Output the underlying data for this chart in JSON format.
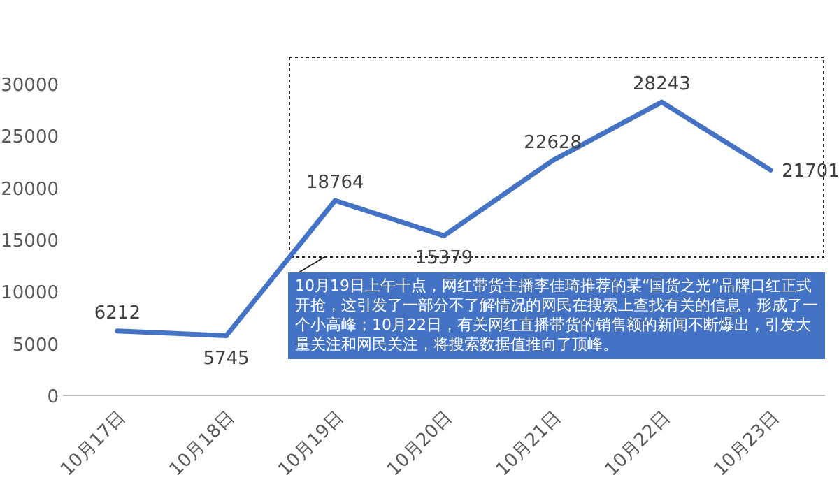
{
  "chart_data": {
    "type": "line",
    "categories": [
      "10月17日",
      "10月18日",
      "10月19日",
      "10月20日",
      "10月21日",
      "10月22日",
      "10月23日"
    ],
    "values": [
      6212,
      5745,
      18764,
      15379,
      22628,
      28243,
      21701
    ],
    "color": "#4472c4",
    "ylim": [
      0,
      30000
    ],
    "yticks": [
      0,
      5000,
      10000,
      15000,
      20000,
      25000,
      30000
    ],
    "data_labels": true,
    "annotations": [
      "10月19日上午十点，网红带货主播李佳琦推荐的某“国货之光”品牌口红正式开抢，这引发了一部分不了解情况的网民在搜索上查找有关的信息，形成了一个小高峰；10月22日，有关网红直播带货的销售额的新闻不断爆出，引发大量关注和网民关注，将搜索数据值推向了顶峰。"
    ]
  }
}
